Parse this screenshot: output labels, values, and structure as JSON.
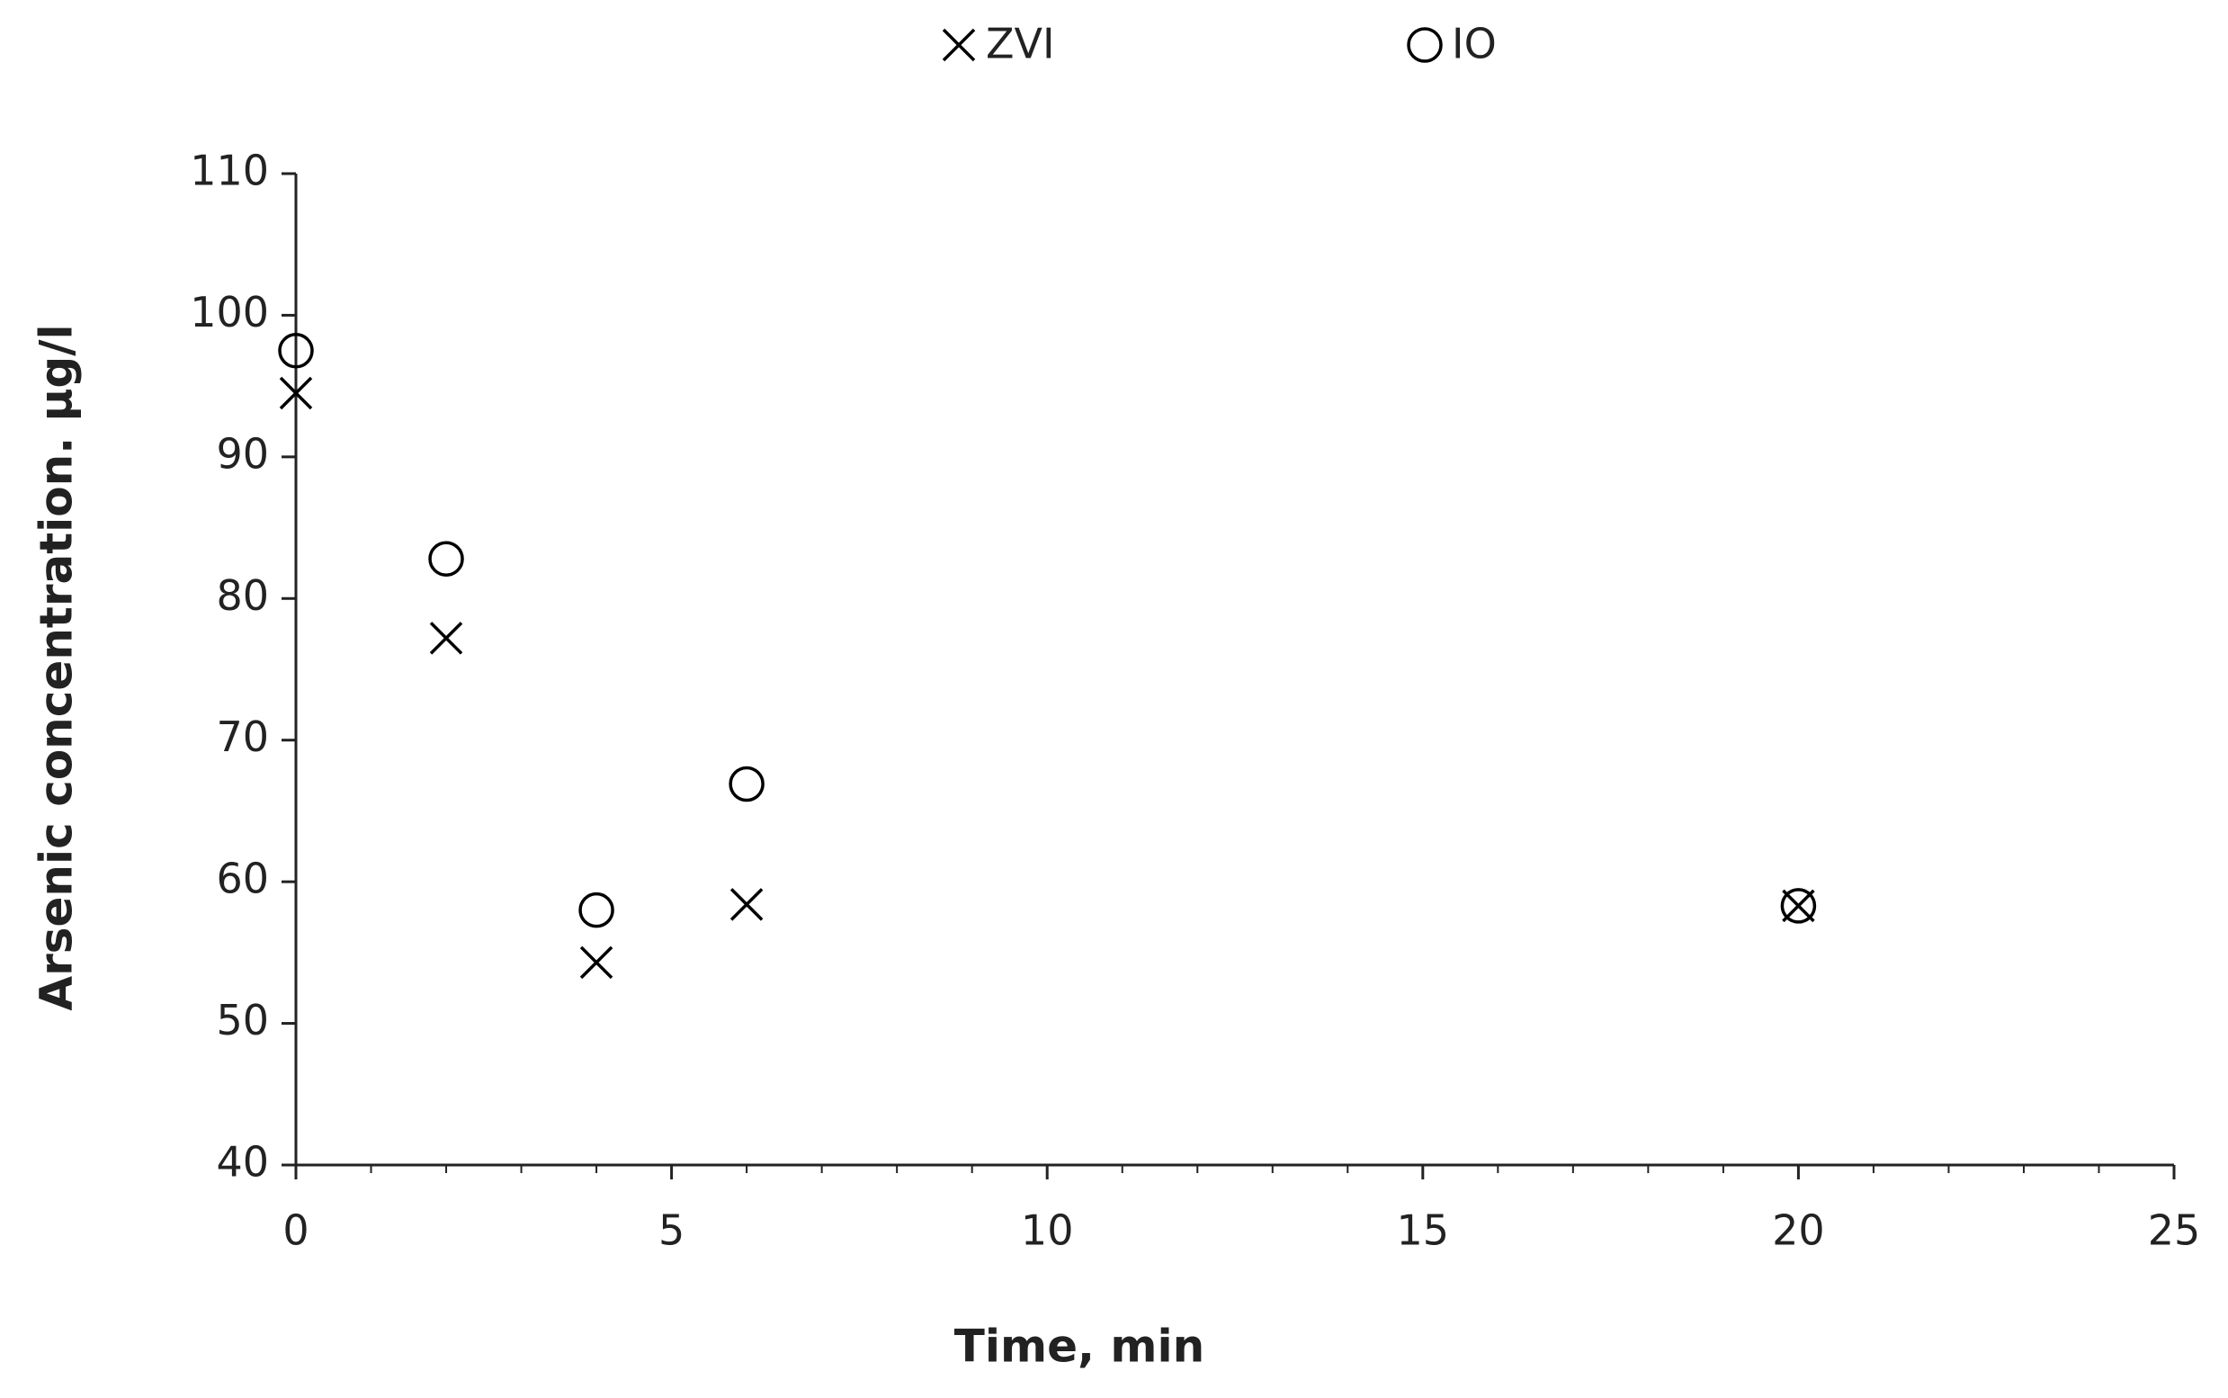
{
  "chart_data": {
    "type": "scatter",
    "x_label": "Time, min",
    "y_label": "Arsenic concentration. µg/l",
    "xlim": [
      0,
      25
    ],
    "xticks": [
      0,
      5,
      10,
      15,
      20,
      25
    ],
    "xminorticks": [
      1,
      2,
      3,
      4,
      6,
      7,
      8,
      9,
      11,
      12,
      13,
      14,
      16,
      17,
      18,
      19,
      21,
      22,
      23,
      24
    ],
    "ylim": [
      40,
      110
    ],
    "yticks": [
      40,
      50,
      60,
      70,
      80,
      90,
      100,
      110
    ],
    "grid": false,
    "legend": "top",
    "series": [
      {
        "name": "ZVI",
        "marker": "x",
        "color": "#000000",
        "x": [
          0,
          2,
          4,
          6,
          20
        ],
        "values": [
          94.5,
          77.2,
          54.3,
          58.4,
          58.3
        ]
      },
      {
        "name": "IO",
        "marker": "o",
        "color": "#000000",
        "x": [
          0,
          2,
          4,
          6,
          20
        ],
        "values": [
          97.5,
          82.8,
          58,
          66.9,
          58.3
        ]
      }
    ]
  }
}
